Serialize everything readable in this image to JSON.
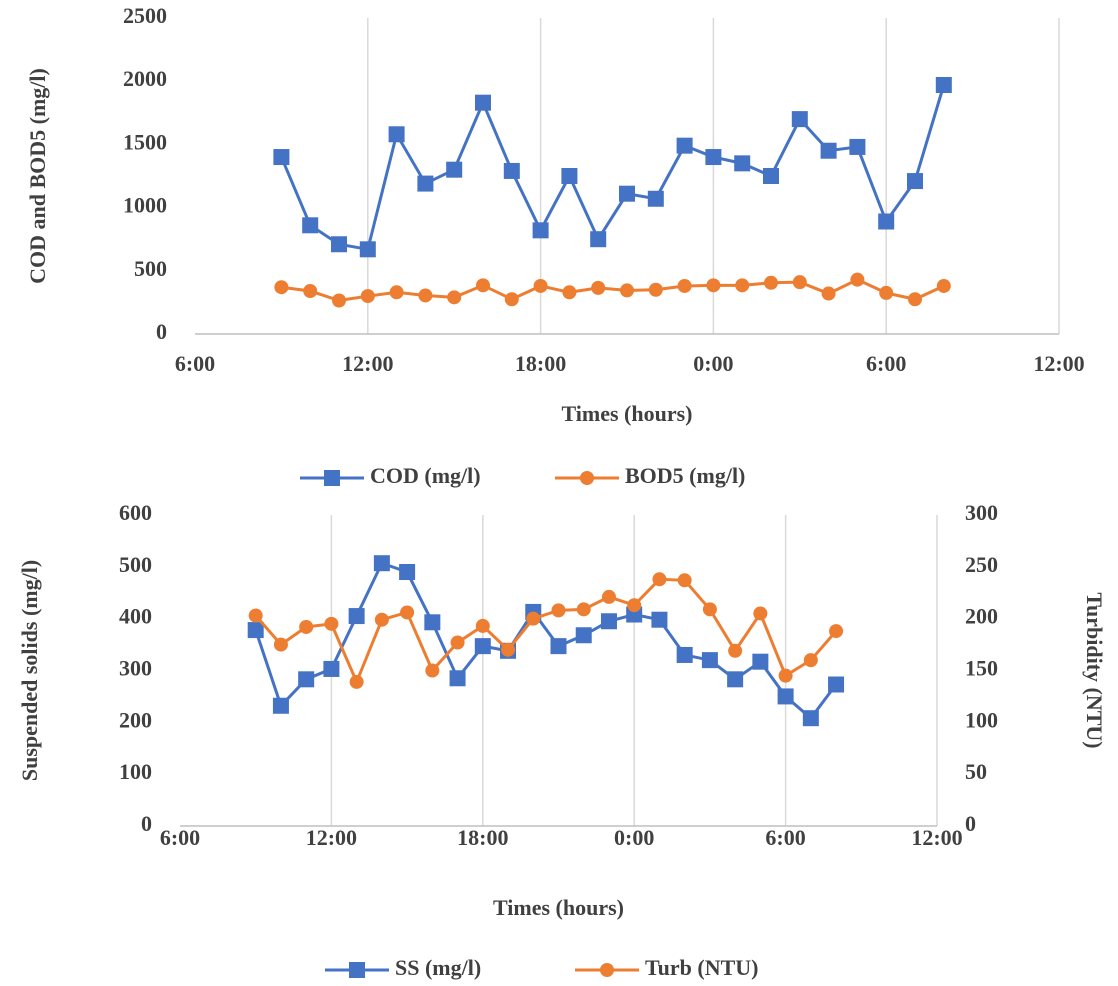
{
  "chart_data": [
    {
      "type": "line",
      "x_label": "Times (hours)",
      "y_label": "COD and BOD5 (mg/l)",
      "x": [
        9,
        10,
        11,
        12,
        13,
        14,
        15,
        16,
        17,
        18,
        19,
        20,
        21,
        22,
        23,
        24,
        25,
        26,
        27,
        28,
        29,
        30,
        31,
        32
      ],
      "xlim": [
        6,
        36
      ],
      "xticks": [
        {
          "value": 6,
          "label": "6:00"
        },
        {
          "value": 12,
          "label": "12:00"
        },
        {
          "value": 18,
          "label": "18:00"
        },
        {
          "value": 24,
          "label": "0:00"
        },
        {
          "value": 30,
          "label": "6:00"
        },
        {
          "value": 36,
          "label": "12:00"
        }
      ],
      "ylim": [
        0,
        2500
      ],
      "yticks": [
        0,
        500,
        1000,
        1500,
        2000,
        2500
      ],
      "grid": "x",
      "legend": "bottom",
      "series": [
        {
          "name": "COD (mg/l)",
          "color": "#4472c4",
          "marker": "square",
          "values": [
            1400,
            860,
            710,
            670,
            1580,
            1190,
            1300,
            1830,
            1290,
            820,
            1250,
            750,
            1110,
            1070,
            1490,
            1400,
            1350,
            1250,
            1700,
            1450,
            1480,
            890,
            1210,
            1970
          ]
        },
        {
          "name": "BOD5 (mg/l)",
          "color": "#ed7d31",
          "marker": "circle",
          "values": [
            370,
            340,
            265,
            300,
            330,
            305,
            290,
            385,
            275,
            380,
            330,
            365,
            345,
            350,
            380,
            385,
            385,
            405,
            410,
            320,
            430,
            325,
            275,
            380
          ]
        }
      ]
    },
    {
      "type": "line",
      "x_label": "Times (hours)",
      "y_label": "Suspended solids (mg/l)",
      "y2_label": "Turbidity (NTU)",
      "x": [
        9,
        10,
        11,
        12,
        13,
        14,
        15,
        16,
        17,
        18,
        19,
        20,
        21,
        22,
        23,
        24,
        25,
        26,
        27,
        28,
        29,
        30,
        31,
        32
      ],
      "xlim": [
        6,
        36
      ],
      "xticks": [
        {
          "value": 6,
          "label": "6:00"
        },
        {
          "value": 12,
          "label": "12:00"
        },
        {
          "value": 18,
          "label": "18:00"
        },
        {
          "value": 24,
          "label": "0:00"
        },
        {
          "value": 30,
          "label": "6:00"
        },
        {
          "value": 36,
          "label": "12:00"
        }
      ],
      "ylim": [
        0,
        600
      ],
      "yticks": [
        0,
        100,
        200,
        300,
        400,
        500,
        600
      ],
      "y2lim": [
        0,
        300
      ],
      "y2ticks": [
        0,
        50,
        100,
        150,
        200,
        250,
        300
      ],
      "grid": "x",
      "legend": "bottom",
      "series": [
        {
          "name": "SS (mg/l)",
          "color": "#4472c4",
          "marker": "square",
          "values": [
            378,
            232,
            283,
            303,
            405,
            507,
            490,
            393,
            285,
            347,
            338,
            413,
            347,
            368,
            395,
            408,
            398,
            330,
            320,
            283,
            317,
            250,
            208,
            273
          ]
        },
        {
          "name": "Turb (NTU)",
          "color": "#ed7d31",
          "marker": "circle",
          "axis": "y2",
          "values": [
            203,
            175,
            192,
            195,
            139,
            199,
            206,
            150,
            177,
            193,
            170,
            200,
            208,
            209,
            221,
            213,
            238,
            237,
            209,
            169,
            205,
            145,
            160,
            188
          ]
        }
      ]
    }
  ]
}
